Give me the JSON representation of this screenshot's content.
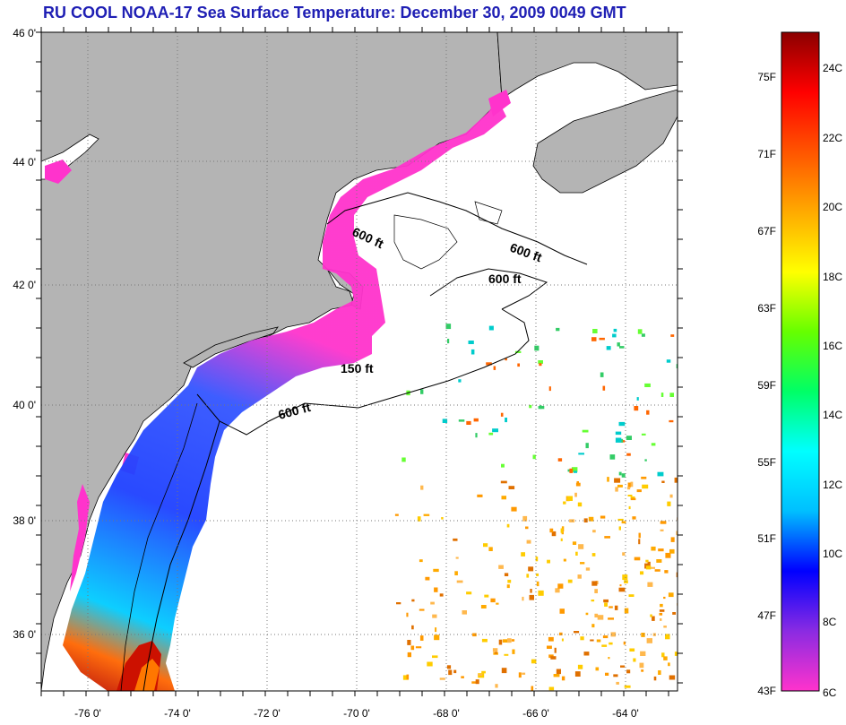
{
  "title": "RU COOL  NOAA-17  Sea Surface Temperature:  December 30, 2009 0049 GMT",
  "map": {
    "lat_labels": [
      "46 0'",
      "44 0'",
      "42 0'",
      "40 0'",
      "38 0'",
      "36 0'"
    ],
    "lon_labels": [
      "-76 0'",
      "-74 0'",
      "-72 0'",
      "-70 0'",
      "-68 0'",
      "-66 0'",
      "-64 0'"
    ],
    "contour_labels": [
      "600 ft",
      "600 ft",
      "600 ft",
      "150 ft",
      "600 ft"
    ],
    "colors": {
      "land": "#b4b4b4",
      "ocean_nodata": "#ffffff",
      "grid": "#777777"
    }
  },
  "colorbar": {
    "f_labels": [
      "75F",
      "71F",
      "67F",
      "63F",
      "59F",
      "55F",
      "51F",
      "47F",
      "43F"
    ],
    "c_labels": [
      "24C",
      "22C",
      "20C",
      "18C",
      "16C",
      "14C",
      "12C",
      "10C",
      "8C",
      "6C"
    ],
    "stops": [
      "#ff33cc",
      "#8a2be2",
      "#0000ff",
      "#00bfff",
      "#00ffff",
      "#00ff66",
      "#66ff00",
      "#ffff00",
      "#ffaa00",
      "#ff5500",
      "#ff0000",
      "#8b0000"
    ]
  }
}
